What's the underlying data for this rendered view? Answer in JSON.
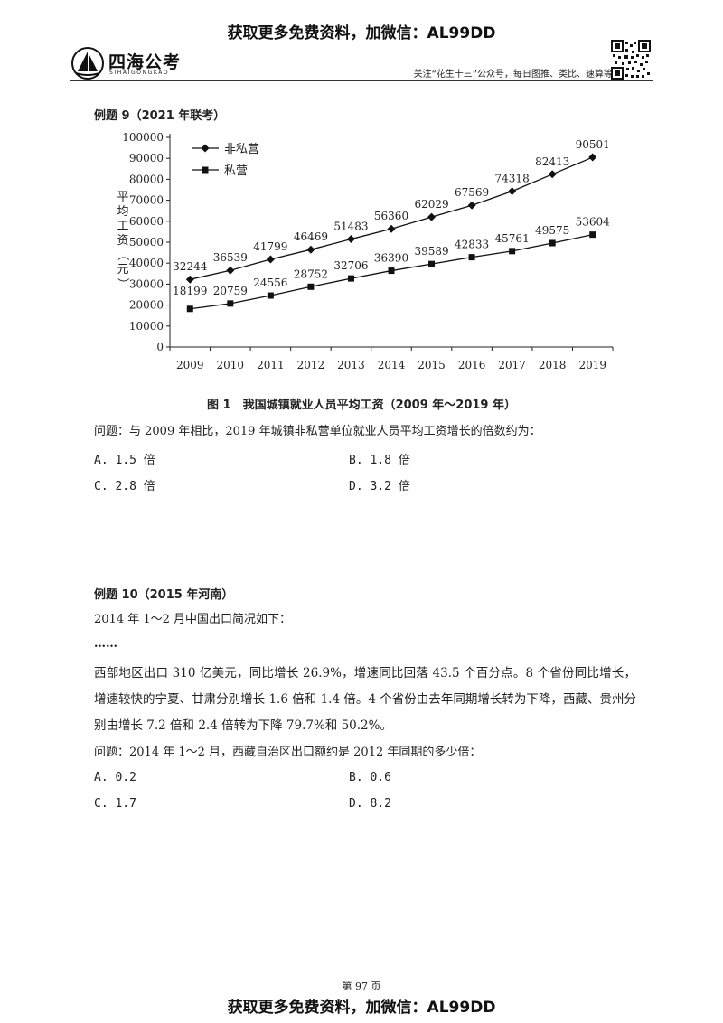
{
  "header": {
    "banner": "获取更多免费资料，加微信：AL99DD",
    "logo_name": "四海公考",
    "logo_sub": "SIHAIGONGKAO",
    "note": "关注“花生十三”公众号，每日图推、类比、速算等"
  },
  "q9": {
    "title": "例题 9（2021 年联考）",
    "caption": "图 1　我国城镇就业人员平均工资（2009 年～2019 年）",
    "question": "问题：与 2009 年相比，2019 年城镇非私营单位就业人员平均工资增长的倍数约为：",
    "options": [
      "A. 1.5 倍",
      "B. 1.8 倍",
      "C. 2.8 倍",
      "D. 3.2 倍"
    ]
  },
  "chart_data": {
    "type": "line",
    "x": [
      "2009",
      "2010",
      "2011",
      "2012",
      "2013",
      "2014",
      "2015",
      "2016",
      "2017",
      "2018",
      "2019"
    ],
    "ylabel": "平均工资（元）",
    "ylim": [
      0,
      100000
    ],
    "yticks": [
      0,
      10000,
      20000,
      30000,
      40000,
      50000,
      60000,
      70000,
      80000,
      90000,
      100000
    ],
    "legend_position": "top-left",
    "series": [
      {
        "name": "非私营",
        "marker": "diamond",
        "values": [
          32244,
          36539,
          41799,
          46469,
          51483,
          56360,
          62029,
          67569,
          74318,
          82413,
          90501
        ]
      },
      {
        "name": "私营",
        "marker": "square",
        "values": [
          18199,
          20759,
          24556,
          28752,
          32706,
          36390,
          39589,
          42833,
          45761,
          49575,
          53604
        ]
      }
    ]
  },
  "q10": {
    "title": "例题 10（2015 年河南）",
    "intro": "2014 年 1～2 月中国出口简况如下：",
    "ellipsis": "……",
    "paragraph": "西部地区出口 310 亿美元，同比增长 26.9%，增速同比回落 43.5 个百分点。8 个省份同比增长，增速较快的宁夏、甘肃分别增长 1.6 倍和 1.4 倍。4 个省份由去年同期增长转为下降，西藏、贵州分别由增长 7.2 倍和 2.4 倍转为下降 79.7%和 50.2%。",
    "question": "问题：2014 年 1～2 月，西藏自治区出口额约是 2012 年同期的多少倍：",
    "options": [
      "A. 0.2",
      "B. 0.6",
      "C. 1.7",
      "D. 8.2"
    ]
  },
  "footer": {
    "page": "第 97 页",
    "banner": "获取更多免费资料，加微信：AL99DD"
  }
}
